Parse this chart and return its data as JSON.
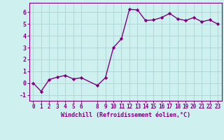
{
  "x": [
    0,
    1,
    2,
    3,
    4,
    5,
    6,
    8,
    9,
    10,
    11,
    12,
    13,
    14,
    15,
    16,
    17,
    18,
    19,
    20,
    21,
    22,
    23
  ],
  "y": [
    0,
    -0.7,
    0.3,
    0.5,
    0.65,
    0.35,
    0.45,
    -0.2,
    0.45,
    3.0,
    3.75,
    6.25,
    6.2,
    5.3,
    5.35,
    5.55,
    5.9,
    5.45,
    5.3,
    5.55,
    5.2,
    5.35,
    5.0
  ],
  "xticks": [
    0,
    1,
    2,
    3,
    4,
    5,
    6,
    8,
    9,
    10,
    11,
    12,
    13,
    14,
    15,
    16,
    17,
    18,
    19,
    20,
    21,
    22,
    23
  ],
  "yticks": [
    -1,
    0,
    1,
    2,
    3,
    4,
    5,
    6
  ],
  "ylim": [
    -1.5,
    6.8
  ],
  "xlim": [
    -0.5,
    23.5
  ],
  "xlabel": "Windchill (Refroidissement éolien,°C)",
  "line_color": "#800080",
  "bg_color": "#cef0ee",
  "grid_color": "#b0d8d8",
  "marker": "D",
  "markersize": 2.2,
  "linewidth": 1.0,
  "tick_fontsize": 5.5,
  "xlabel_fontsize": 6.0
}
